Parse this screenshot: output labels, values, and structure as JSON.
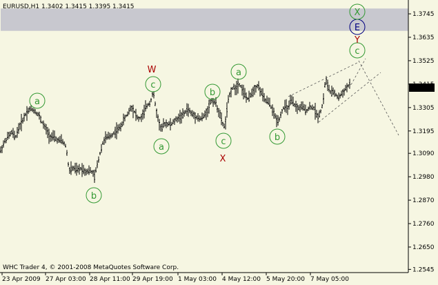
{
  "header": {
    "symbol_info": "EURUSD,H1  1.3402 1.3415 1.3395 1.3415"
  },
  "footer": {
    "copyright": "WHC Trader 4, © 2001-2008 MetaQuotes Software Corp."
  },
  "colors": {
    "background": "#f6f6e2",
    "candles": "#000000",
    "price_tag_bg": "#000000",
    "price_tag_text": "#ffffff",
    "wave_green": "#339933",
    "wave_red": "#aa0000",
    "wave_blue": "#000080",
    "band": "#c8c8cf"
  },
  "chart_data": {
    "type": "ohlc",
    "symbol": "EURUSD",
    "timeframe": "H1",
    "last_price": "1.3415",
    "ylim": [
      1.253,
      1.381
    ],
    "y_ticks": [
      "1.3745",
      "1.3635",
      "1.3525",
      "1.3415",
      "1.3305",
      "1.3195",
      "1.3090",
      "1.2980",
      "1.2870",
      "1.2760",
      "1.2650",
      "1.2545"
    ],
    "x_ticks": [
      "23 Apr 2009",
      "27 Apr 03:00",
      "28 Apr 11:00",
      "29 Apr 19:00",
      "1 May 03:00",
      "4 May 12:00",
      "5 May 20:00",
      "7 May 05:00"
    ],
    "grid": false,
    "resistance_band": [
      1.3665,
      1.377
    ],
    "price_path": [
      [
        0,
        1.3095
      ],
      [
        6,
        1.314
      ],
      [
        12,
        1.317
      ],
      [
        18,
        1.319
      ],
      [
        22,
        1.316
      ],
      [
        26,
        1.32
      ],
      [
        32,
        1.324
      ],
      [
        38,
        1.328
      ],
      [
        44,
        1.33
      ],
      [
        50,
        1.329
      ],
      [
        56,
        1.327
      ],
      [
        62,
        1.323
      ],
      [
        68,
        1.3195
      ],
      [
        72,
        1.317
      ],
      [
        78,
        1.3165
      ],
      [
        84,
        1.315
      ],
      [
        90,
        1.315
      ],
      [
        96,
        1.312
      ],
      [
        100,
        1.301
      ],
      [
        106,
        1.302
      ],
      [
        112,
        1.301
      ],
      [
        118,
        1.302
      ],
      [
        124,
        1.3005
      ],
      [
        130,
        1.301
      ],
      [
        134,
        1.3
      ],
      [
        137,
        1.298
      ],
      [
        142,
        1.305
      ],
      [
        148,
        1.313
      ],
      [
        152,
        1.316
      ],
      [
        156,
        1.3165
      ],
      [
        162,
        1.3175
      ],
      [
        168,
        1.3195
      ],
      [
        174,
        1.321
      ],
      [
        180,
        1.325
      ],
      [
        186,
        1.328
      ],
      [
        190,
        1.331
      ],
      [
        196,
        1.328
      ],
      [
        200,
        1.325
      ],
      [
        206,
        1.326
      ],
      [
        212,
        1.331
      ],
      [
        218,
        1.333
      ],
      [
        222,
        1.338
      ],
      [
        226,
        1.33
      ],
      [
        230,
        1.324
      ],
      [
        234,
        1.32
      ],
      [
        238,
        1.323
      ],
      [
        242,
        1.323
      ],
      [
        248,
        1.3225
      ],
      [
        254,
        1.3245
      ],
      [
        260,
        1.326
      ],
      [
        266,
        1.327
      ],
      [
        272,
        1.33
      ],
      [
        278,
        1.3275
      ],
      [
        284,
        1.3265
      ],
      [
        290,
        1.325
      ],
      [
        296,
        1.3265
      ],
      [
        302,
        1.33
      ],
      [
        306,
        1.334
      ],
      [
        312,
        1.333
      ],
      [
        318,
        1.328
      ],
      [
        322,
        1.3235
      ],
      [
        326,
        1.321
      ],
      [
        330,
        1.332
      ],
      [
        334,
        1.338
      ],
      [
        338,
        1.34
      ],
      [
        342,
        1.3395
      ],
      [
        346,
        1.342
      ],
      [
        350,
        1.34
      ],
      [
        356,
        1.336
      ],
      [
        360,
        1.334
      ],
      [
        364,
        1.337
      ],
      [
        368,
        1.339
      ],
      [
        374,
        1.341
      ],
      [
        378,
        1.338
      ],
      [
        384,
        1.334
      ],
      [
        390,
        1.333
      ],
      [
        394,
        1.33
      ],
      [
        398,
        1.327
      ],
      [
        402,
        1.324
      ],
      [
        406,
        1.326
      ],
      [
        410,
        1.33
      ],
      [
        414,
        1.331
      ],
      [
        418,
        1.33
      ],
      [
        422,
        1.334
      ],
      [
        426,
        1.332
      ],
      [
        432,
        1.33
      ],
      [
        438,
        1.331
      ],
      [
        444,
        1.329
      ],
      [
        450,
        1.331
      ],
      [
        456,
        1.33
      ],
      [
        460,
        1.326
      ],
      [
        464,
        1.328
      ],
      [
        468,
        1.332
      ],
      [
        472,
        1.344
      ],
      [
        476,
        1.34
      ],
      [
        480,
        1.337
      ],
      [
        484,
        1.338
      ],
      [
        490,
        1.335
      ],
      [
        496,
        1.337
      ],
      [
        500,
        1.339
      ],
      [
        506,
        1.341
      ]
    ],
    "annotations": [
      {
        "label": "a",
        "circled": true,
        "color": "green"
      },
      {
        "label": "b",
        "circled": true,
        "color": "green"
      },
      {
        "label": "c",
        "circled": true,
        "color": "green"
      },
      {
        "label": "W",
        "circled": false,
        "color": "red"
      },
      {
        "label": "a",
        "circled": true,
        "color": "green"
      },
      {
        "label": "b",
        "circled": true,
        "color": "green"
      },
      {
        "label": "c",
        "circled": true,
        "color": "green"
      },
      {
        "label": "X",
        "circled": false,
        "color": "red"
      },
      {
        "label": "a",
        "circled": true,
        "color": "green"
      },
      {
        "label": "b",
        "circled": true,
        "color": "green"
      },
      {
        "label": "c",
        "circled": true,
        "color": "green"
      },
      {
        "label": "Y",
        "circled": false,
        "color": "red"
      },
      {
        "label": "E",
        "circled": true,
        "color": "blue"
      },
      {
        "label": "X",
        "circled": true,
        "color": "green"
      }
    ]
  }
}
